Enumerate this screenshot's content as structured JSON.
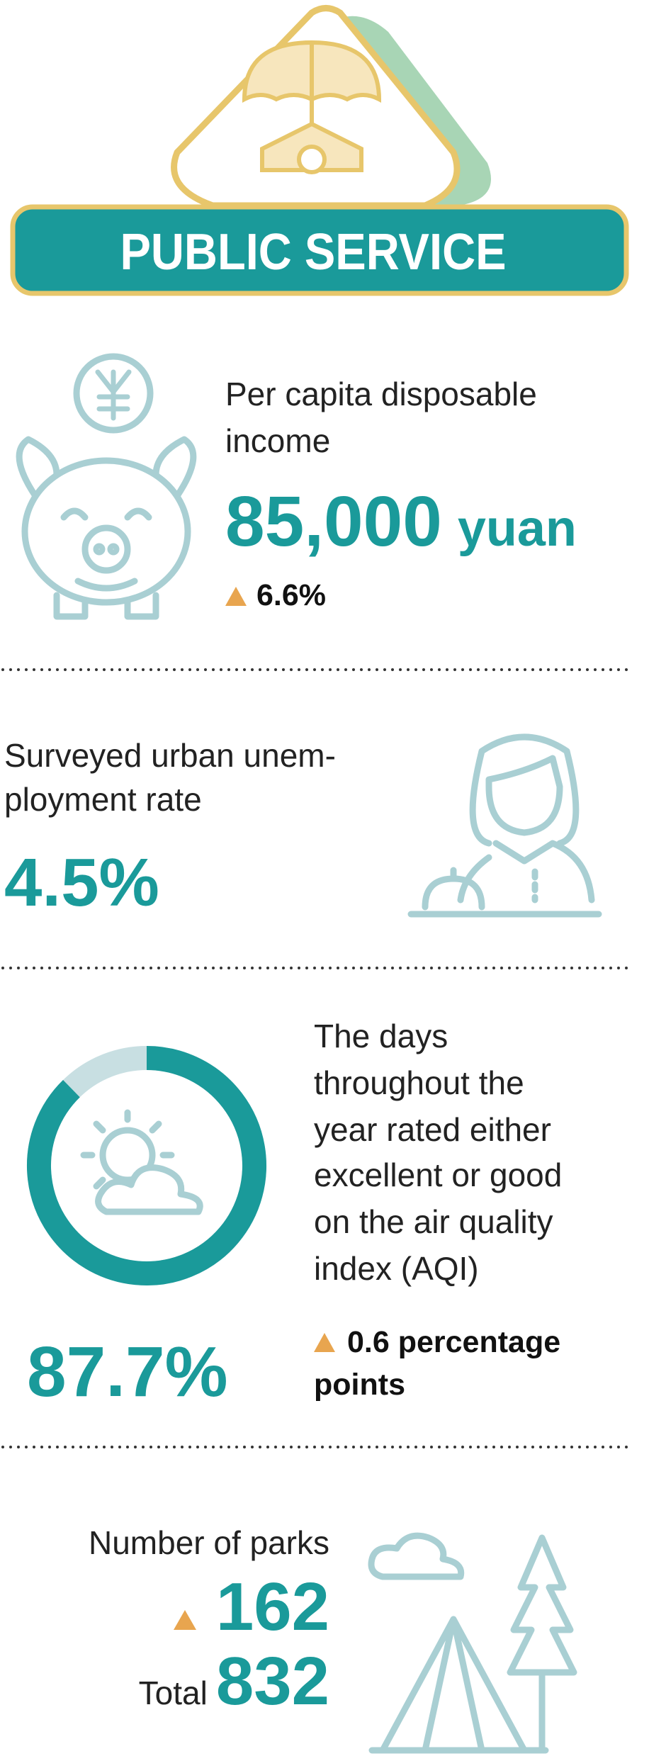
{
  "header": {
    "title": "PUBLIC SERVICE"
  },
  "income": {
    "label_lines": [
      "Per capita disposable",
      "income"
    ],
    "value": "85,000",
    "unit": "yuan",
    "change": "6.6%"
  },
  "unemployment": {
    "label_lines": [
      "Surveyed urban unem-",
      "ployment rate"
    ],
    "value": "4.5%"
  },
  "air": {
    "label_lines": [
      "The days",
      "throughout the",
      "year rated either",
      "excellent or good",
      "on the air quality",
      "index (AQI)"
    ],
    "value": 87.7,
    "value_label": "87.7%",
    "change_lines": [
      "0.6 percentage",
      "points"
    ]
  },
  "parks": {
    "label": "Number of parks",
    "new": "162",
    "total_label": "Total",
    "total": "832"
  }
}
